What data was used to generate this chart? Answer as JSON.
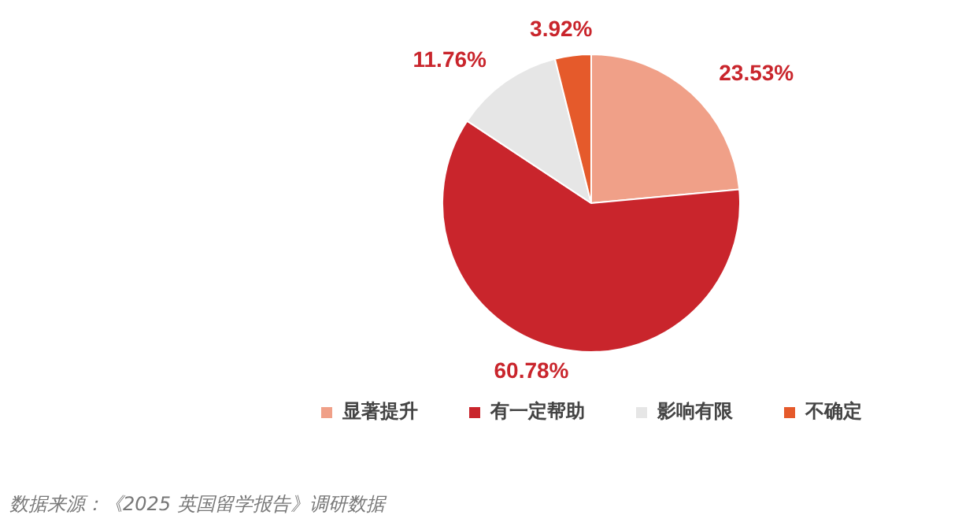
{
  "chart_data": {
    "type": "pie",
    "categories": [
      "显著提升",
      "有一定帮助",
      "影响有限",
      "不确定"
    ],
    "values": [
      23.53,
      60.78,
      11.76,
      3.92
    ],
    "colors": [
      "#f0a088",
      "#c9252c",
      "#e6e6e6",
      "#e55a2b"
    ],
    "value_labels": [
      "23.53%",
      "60.78%",
      "11.76%",
      "3.92%"
    ],
    "legend": "bottom",
    "annotations": [
      "数据来源：《2025 英国留学报告》调研数据"
    ]
  }
}
